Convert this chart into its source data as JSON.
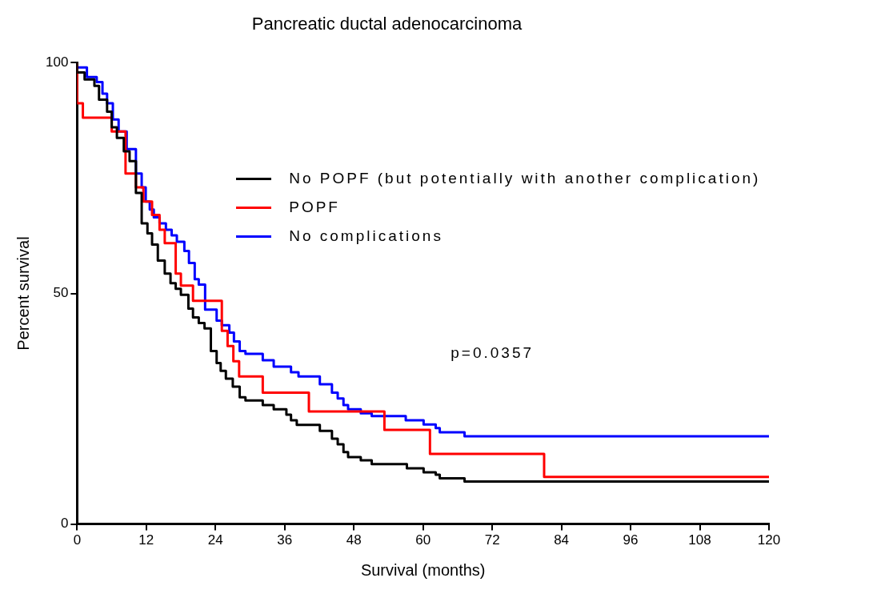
{
  "chart_data": {
    "type": "step",
    "title": "Pancreatic ductal adenocarcinoma",
    "xlabel": "Survival (months)",
    "ylabel": "Percent survival",
    "xlim": [
      0,
      120
    ],
    "xticks": [
      0,
      12,
      24,
      36,
      48,
      60,
      72,
      84,
      96,
      108,
      120
    ],
    "ylim": [
      0,
      100
    ],
    "yticks": [
      0,
      50,
      100
    ],
    "grid": false,
    "legend": "right",
    "marker": "none",
    "line_style": "solid",
    "annotations": [
      "p=0.0357"
    ],
    "series": [
      {
        "name": "No POPF (but potentially with another complication)",
        "color": "#000000",
        "x": [
          0,
          1.3,
          3.0,
          3.8,
          5.2,
          6.0,
          6.9,
          8.1,
          9.1,
          10.2,
          11.2,
          12.2,
          13.0,
          14.0,
          15.2,
          16.2,
          17.1,
          18.0,
          19.3,
          20.1,
          21.1,
          22.1,
          23.2,
          24.2,
          24.9,
          25.8,
          27.0,
          28.2,
          29.2,
          32.2,
          34.1,
          36.3,
          37.1,
          38.1,
          42.1,
          44.2,
          45.2,
          46.2,
          47.0,
          49.2,
          51.1,
          57.2,
          60.1,
          62.2,
          62.9,
          67.2,
          68.1,
          120
        ],
        "values": [
          100,
          97.9,
          96.4,
          95.0,
          92.0,
          89.4,
          86.0,
          83.7,
          80.8,
          78.7,
          71.8,
          65.2,
          63.0,
          60.6,
          57.1,
          54.3,
          52.2,
          51.0,
          49.7,
          46.7,
          44.8,
          43.6,
          42.4,
          37.5,
          34.9,
          33.2,
          31.5,
          29.8,
          27.5,
          26.8,
          25.8,
          24.9,
          23.7,
          22.5,
          21.5,
          20.2,
          18.5,
          17.3,
          15.6,
          14.5,
          13.8,
          13.0,
          12.1,
          11.2,
          10.7,
          9.9,
          9.2,
          9.2
        ]
      },
      {
        "name": "POPF",
        "color": "#ff0000",
        "x": [
          0,
          1.0,
          6.0,
          8.4,
          10.2,
          11.5,
          13.0,
          14.3,
          15.2,
          17.1,
          18.0,
          20.1,
          25.1,
          26.1,
          27.1,
          28.1,
          32.2,
          40.2,
          53.3,
          61.2,
          81.0,
          95.9,
          120
        ],
        "values": [
          100,
          91.2,
          88.1,
          85.1,
          76.0,
          73.0,
          69.9,
          67.0,
          63.8,
          60.9,
          54.3,
          51.7,
          48.4,
          41.9,
          38.6,
          35.3,
          32.0,
          28.5,
          24.4,
          20.4,
          15.2,
          10.2,
          10.2
        ]
      },
      {
        "name": "No complications",
        "color": "#0000ff",
        "x": [
          0,
          1.7,
          3.4,
          4.4,
          5.2,
          6.2,
          7.2,
          8.6,
          10.2,
          11.2,
          11.9,
          12.6,
          13.3,
          14.3,
          15.4,
          16.4,
          17.3,
          18.6,
          19.4,
          20.4,
          21.1,
          22.2,
          24.2,
          25.1,
          26.4,
          27.2,
          28.2,
          29.2,
          32.2,
          34.1,
          37.1,
          38.4,
          42.1,
          44.2,
          45.2,
          46.2,
          47.0,
          49.2,
          51.1,
          57.0,
          60.1,
          62.2,
          62.9,
          67.2,
          68.1,
          120
        ],
        "values": [
          100,
          99.0,
          96.9,
          95.8,
          93.3,
          91.2,
          87.7,
          85.1,
          81.3,
          76.0,
          73.0,
          69.9,
          68.2,
          66.5,
          65.2,
          63.8,
          62.6,
          61.2,
          59.2,
          56.6,
          53.1,
          51.9,
          46.5,
          44.1,
          43.1,
          41.5,
          39.6,
          37.5,
          36.9,
          35.5,
          34.1,
          32.9,
          32.0,
          30.3,
          28.5,
          27.2,
          25.8,
          24.9,
          24.0,
          23.4,
          22.5,
          21.6,
          20.8,
          19.9,
          19.0,
          19.0
        ]
      }
    ]
  }
}
